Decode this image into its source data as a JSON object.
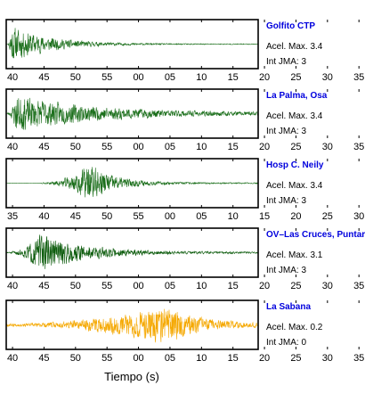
{
  "chart_data": {
    "type": "line",
    "xlabel": "Tiempo (s)",
    "panels": [
      {
        "station": "Golfito CTP",
        "accel_label": "Acel. Max. 3.4",
        "jma_label": "Int JMA: 3",
        "color": "#1a6e1a",
        "tick_labels": [
          "40",
          "45",
          "50",
          "55",
          "00",
          "05",
          "10",
          "15",
          "20",
          "25",
          "30",
          "35"
        ],
        "tick_first_sec": 40,
        "x_start_sec": 39,
        "x_end_sec": 79,
        "signal": {
          "onset_sec": 39.3,
          "peak_sec": 39.6,
          "amplitude": 0.95,
          "decay_sec": 6,
          "coda": 0.02,
          "rise_sec": 0.3,
          "seed": 11
        }
      },
      {
        "station": "La Palma, Osa",
        "accel_label": "Acel. Max. 3.4",
        "jma_label": "Int JMA: 3",
        "color": "#1a6e1a",
        "tick_labels": [
          "40",
          "45",
          "50",
          "55",
          "00",
          "05",
          "10",
          "15",
          "20",
          "25",
          "30",
          "35"
        ],
        "tick_first_sec": 40,
        "x_start_sec": 39,
        "x_end_sec": 79,
        "signal": {
          "onset_sec": 39.2,
          "peak_sec": 40.5,
          "amplitude": 0.9,
          "decay_sec": 13,
          "coda": 0.05,
          "rise_sec": 1,
          "seed": 23
        }
      },
      {
        "station": "Hosp C. Neily",
        "accel_label": "Acel. Max. 3.4",
        "jma_label": "Int JMA: 3",
        "color": "#1a6e1a",
        "tick_labels": [
          "35",
          "40",
          "45",
          "50",
          "55",
          "00",
          "05",
          "10",
          "15",
          "20",
          "25",
          "30"
        ],
        "tick_first_sec": 35,
        "x_start_sec": 34,
        "x_end_sec": 74,
        "signal": {
          "onset_sec": 39.5,
          "peak_sec": 47.3,
          "amplitude": 0.95,
          "decay_sec": 4,
          "coda": 0.03,
          "rise_sec": 2.5,
          "seed": 37
        }
      },
      {
        "station": "OV–Las Cruces, Puntar",
        "accel_label": "Acel. Max. 3.1",
        "jma_label": "Int JMA: 3",
        "color": "#0d5c0d",
        "tick_labels": [
          "40",
          "45",
          "50",
          "55",
          "00",
          "05",
          "10",
          "15",
          "20",
          "25",
          "30",
          "35"
        ],
        "tick_first_sec": 40,
        "x_start_sec": 39,
        "x_end_sec": 79,
        "signal": {
          "onset_sec": 39.1,
          "peak_sec": 44.5,
          "amplitude": 0.95,
          "decay_sec": 7,
          "coda": 0.04,
          "rise_sec": 2.5,
          "seed": 51
        }
      },
      {
        "station": "La Sabana",
        "accel_label": "Acel. Max. 0.2",
        "jma_label": "Int JMA: 0",
        "color": "#f5a800",
        "tick_labels": [
          "40",
          "45",
          "50",
          "55",
          "00",
          "05",
          "10",
          "15",
          "20",
          "25",
          "30",
          "35"
        ],
        "tick_first_sec": 40,
        "x_start_sec": 39,
        "x_end_sec": 79,
        "signal": {
          "onset_sec": 39.0,
          "peak_sec": 64.5,
          "amplitude": 0.95,
          "decay_sec": 5,
          "coda": 0.07,
          "rise_sec": 8,
          "seed": 67
        }
      }
    ]
  }
}
